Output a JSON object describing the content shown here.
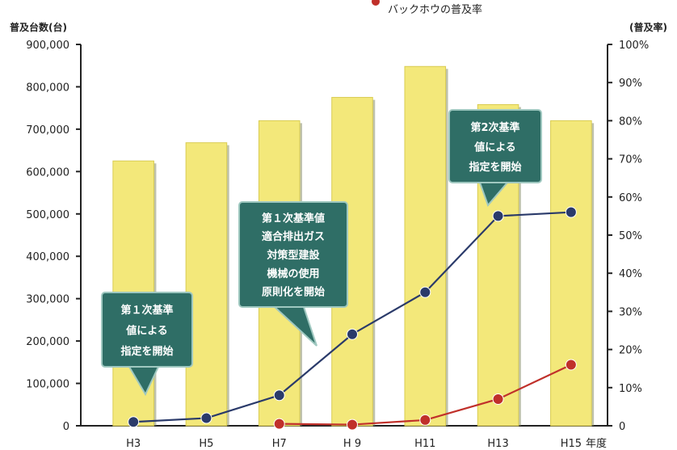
{
  "chart_data": {
    "type": "bar",
    "categories": [
      "H3",
      "H5",
      "H7",
      "H 9",
      "H11",
      "H13",
      "H15"
    ],
    "x_axis_unit": "年度",
    "left_axis": {
      "label": "普及台数(台)",
      "ylim": [
        0,
        900000
      ],
      "ticks": [
        "0",
        "100,000",
        "200,000",
        "300,000",
        "400,000",
        "500,000",
        "600,000",
        "700,000",
        "800,000",
        "900,000"
      ]
    },
    "right_axis": {
      "label": "(普及率)",
      "ylim": [
        0,
        100
      ],
      "ticks": [
        "0",
        "10%",
        "20%",
        "30%",
        "40%",
        "50%",
        "60%",
        "70%",
        "80%",
        "90%",
        "100%"
      ]
    },
    "series": [
      {
        "kind": "bar",
        "axis": "left",
        "values": [
          625000,
          668000,
          720000,
          775000,
          848000,
          758000,
          720000
        ]
      },
      {
        "kind": "line",
        "axis": "right",
        "color": "#2a3a6a",
        "values": [
          1,
          2,
          8,
          24,
          35,
          55,
          56
        ]
      },
      {
        "kind": "line",
        "axis": "right",
        "name": "バックホウの普及率",
        "color": "#c0302a",
        "values": [
          null,
          null,
          0.5,
          0.3,
          1.5,
          7,
          16
        ]
      }
    ],
    "legend_fragment": "バックホウの普及率",
    "annotations": [
      {
        "lines": [
          "第１次基準",
          "値による",
          "指定を開始"
        ]
      },
      {
        "lines": [
          "第１次基準値",
          "適合排出ガス",
          "対策型建設",
          "機械の使用",
          "原則化を開始"
        ]
      },
      {
        "lines": [
          "第2次基準",
          "値による",
          "指定を開始"
        ]
      }
    ]
  }
}
